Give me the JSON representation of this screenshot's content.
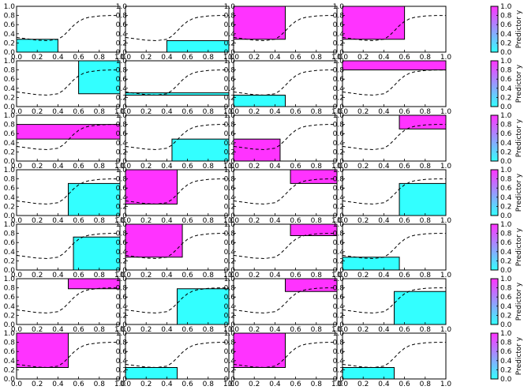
{
  "chart_data": {
    "type": "grid-of-region-plots",
    "rows": 7,
    "cols": 4,
    "xlim": [
      0,
      1
    ],
    "ylim": [
      0,
      1
    ],
    "xticks": [
      "0.0",
      "0.2",
      "0.4",
      "0.6",
      "0.8",
      "1.0"
    ],
    "yticks": [
      "0.0",
      "0.2",
      "0.4",
      "0.6",
      "0.8",
      "1.0"
    ],
    "curve": {
      "style": "dashed",
      "x": [
        0.0,
        0.1,
        0.2,
        0.3,
        0.4,
        0.45,
        0.5,
        0.55,
        0.6,
        0.65,
        0.7,
        0.8,
        0.9,
        1.0
      ],
      "y": [
        0.32,
        0.29,
        0.26,
        0.25,
        0.28,
        0.35,
        0.46,
        0.58,
        0.67,
        0.73,
        0.76,
        0.79,
        0.8,
        0.8
      ]
    },
    "colors": {
      "low": "#33ffff",
      "high": "#ff33ff",
      "curve": "#000000"
    },
    "colorbar": {
      "label": "Predictor y",
      "ticks": [
        "0.0",
        "0.2",
        "0.4",
        "0.6",
        "0.8",
        "1.0"
      ],
      "range": [
        0,
        1
      ]
    },
    "panels": [
      {
        "x0": 0.0,
        "x1": 0.4,
        "y0": 0.0,
        "y1": 0.28,
        "v": 0
      },
      {
        "x0": 0.4,
        "x1": 1.0,
        "y0": 0.0,
        "y1": 0.25,
        "v": 0
      },
      {
        "x0": 0.0,
        "x1": 0.5,
        "y0": 0.28,
        "y1": 1.0,
        "v": 1
      },
      {
        "x0": 0.0,
        "x1": 0.6,
        "y0": 0.28,
        "y1": 1.0,
        "v": 1
      },
      {
        "x0": 0.6,
        "x1": 1.0,
        "y0": 0.28,
        "y1": 1.0,
        "v": 0
      },
      {
        "x0": 0.0,
        "x1": 1.0,
        "y0": 0.25,
        "y1": 0.3,
        "v": 0
      },
      {
        "x0": 0.0,
        "x1": 0.5,
        "y0": 0.0,
        "y1": 0.25,
        "v": 0
      },
      {
        "x0": 0.0,
        "x1": 1.0,
        "y0": 0.8,
        "y1": 1.0,
        "v": 1
      },
      {
        "x0": 0.0,
        "x1": 1.0,
        "y0": 0.48,
        "y1": 0.8,
        "v": 1
      },
      {
        "x0": 0.45,
        "x1": 1.0,
        "y0": 0.0,
        "y1": 0.48,
        "v": 0
      },
      {
        "x0": 0.0,
        "x1": 0.45,
        "y0": 0.0,
        "y1": 0.48,
        "v": 1
      },
      {
        "x0": 0.55,
        "x1": 1.0,
        "y0": 0.7,
        "y1": 1.0,
        "v": 1
      },
      {
        "x0": 0.5,
        "x1": 1.0,
        "y0": 0.0,
        "y1": 0.7,
        "v": 0
      },
      {
        "x0": 0.0,
        "x1": 0.5,
        "y0": 0.25,
        "y1": 1.0,
        "v": 1
      },
      {
        "x0": 0.55,
        "x1": 1.0,
        "y0": 0.7,
        "y1": 1.0,
        "v": 1
      },
      {
        "x0": 0.55,
        "x1": 1.0,
        "y0": 0.0,
        "y1": 0.7,
        "v": 0
      },
      {
        "x0": 0.55,
        "x1": 1.0,
        "y0": 0.0,
        "y1": 0.72,
        "v": 0
      },
      {
        "x0": 0.0,
        "x1": 0.55,
        "y0": 0.28,
        "y1": 1.0,
        "v": 1
      },
      {
        "x0": 0.55,
        "x1": 1.0,
        "y0": 0.75,
        "y1": 1.0,
        "v": 1
      },
      {
        "x0": 0.0,
        "x1": 0.55,
        "y0": 0.0,
        "y1": 0.28,
        "v": 0
      },
      {
        "x0": 0.5,
        "x1": 1.0,
        "y0": 0.78,
        "y1": 1.0,
        "v": 1
      },
      {
        "x0": 0.5,
        "x1": 1.0,
        "y0": 0.0,
        "y1": 0.78,
        "v": 0
      },
      {
        "x0": 0.5,
        "x1": 1.0,
        "y0": 0.72,
        "y1": 1.0,
        "v": 1
      },
      {
        "x0": 0.5,
        "x1": 1.0,
        "y0": 0.0,
        "y1": 0.72,
        "v": 0
      },
      {
        "x0": 0.0,
        "x1": 0.5,
        "y0": 0.25,
        "y1": 1.0,
        "v": 1
      },
      {
        "x0": 0.0,
        "x1": 0.5,
        "y0": 0.0,
        "y1": 0.25,
        "v": 0
      },
      {
        "x0": 0.0,
        "x1": 0.5,
        "y0": 0.25,
        "y1": 1.0,
        "v": 1
      },
      {
        "x0": 0.0,
        "x1": 0.5,
        "y0": 0.0,
        "y1": 0.25,
        "v": 0
      }
    ]
  }
}
